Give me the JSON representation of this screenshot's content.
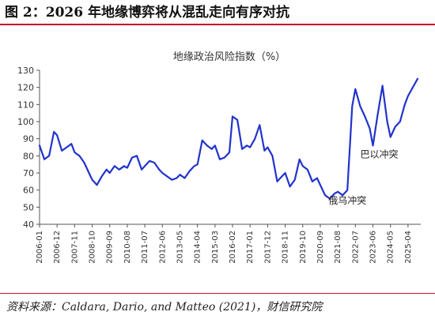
{
  "figure": {
    "title": "图 2：2026 年地缘博弈将从混乱走向有序对抗",
    "source": "资料来源：Caldara, Dario, and Matteo (2021)，财信研究院"
  },
  "chart_data": {
    "type": "line",
    "title": "地缘政治风险指数（%）",
    "xlabel": "",
    "ylabel": "",
    "ylim": [
      40,
      130
    ],
    "yticks": [
      40,
      50,
      60,
      70,
      80,
      90,
      100,
      110,
      120,
      130
    ],
    "xticks": [
      "2006-01",
      "2006-12",
      "2007-11",
      "2008-10",
      "2009-09",
      "2010-08",
      "2011-07",
      "2012-06",
      "2013-05",
      "2014-04",
      "2015-03",
      "2016-02",
      "2017-01",
      "2017-12",
      "2018-11",
      "2019-10",
      "2020-09",
      "2021-08",
      "2022-07",
      "2023-06",
      "2024-05",
      "2025-04"
    ],
    "grid": false,
    "legend": "none",
    "line_color": "#2233cc",
    "series": [
      {
        "name": "",
        "x": [
          "2006-01",
          "2006-04",
          "2006-07",
          "2006-10",
          "2006-12",
          "2007-03",
          "2007-06",
          "2007-09",
          "2007-11",
          "2008-02",
          "2008-05",
          "2008-08",
          "2008-10",
          "2009-01",
          "2009-04",
          "2009-07",
          "2009-09",
          "2009-12",
          "2010-03",
          "2010-06",
          "2010-08",
          "2010-11",
          "2011-02",
          "2011-05",
          "2011-07",
          "2011-10",
          "2012-01",
          "2012-04",
          "2012-06",
          "2012-09",
          "2012-12",
          "2013-03",
          "2013-05",
          "2013-08",
          "2013-11",
          "2014-02",
          "2014-04",
          "2014-07",
          "2014-10",
          "2015-01",
          "2015-03",
          "2015-06",
          "2015-09",
          "2015-12",
          "2016-02",
          "2016-05",
          "2016-08",
          "2016-11",
          "2017-01",
          "2017-04",
          "2017-07",
          "2017-10",
          "2017-12",
          "2018-03",
          "2018-06",
          "2018-09",
          "2018-11",
          "2019-02",
          "2019-05",
          "2019-08",
          "2019-10",
          "2020-01",
          "2020-04",
          "2020-07",
          "2020-09",
          "2020-12",
          "2021-03",
          "2021-06",
          "2021-08",
          "2021-11",
          "2022-02",
          "2022-05",
          "2022-07",
          "2022-10",
          "2023-01",
          "2023-04",
          "2023-06",
          "2023-09",
          "2023-12",
          "2024-03",
          "2024-05",
          "2024-08",
          "2024-11",
          "2025-02",
          "2025-04",
          "2025-07",
          "2025-10"
        ],
        "values": [
          86,
          78,
          80,
          94,
          92,
          83,
          85,
          87,
          82,
          80,
          76,
          70,
          66,
          63,
          68,
          72,
          70,
          74,
          72,
          74,
          73,
          79,
          80,
          72,
          74,
          77,
          76,
          72,
          70,
          68,
          66,
          67,
          69,
          67,
          71,
          74,
          75,
          89,
          86,
          84,
          86,
          78,
          79,
          82,
          103,
          101,
          84,
          86,
          85,
          90,
          98,
          83,
          85,
          80,
          65,
          68,
          70,
          62,
          66,
          78,
          74,
          72,
          65,
          67,
          63,
          57,
          55,
          58,
          59,
          57,
          60,
          109,
          119,
          109,
          103,
          96,
          86,
          104,
          121,
          100,
          91,
          97,
          100,
          110,
          115,
          120,
          125
        ]
      }
    ],
    "annotations": [
      {
        "text": "巴以冲突",
        "x": "2023-10",
        "y": 79
      },
      {
        "text": "俄乌冲突",
        "x": "2022-02",
        "y": 52
      }
    ]
  }
}
